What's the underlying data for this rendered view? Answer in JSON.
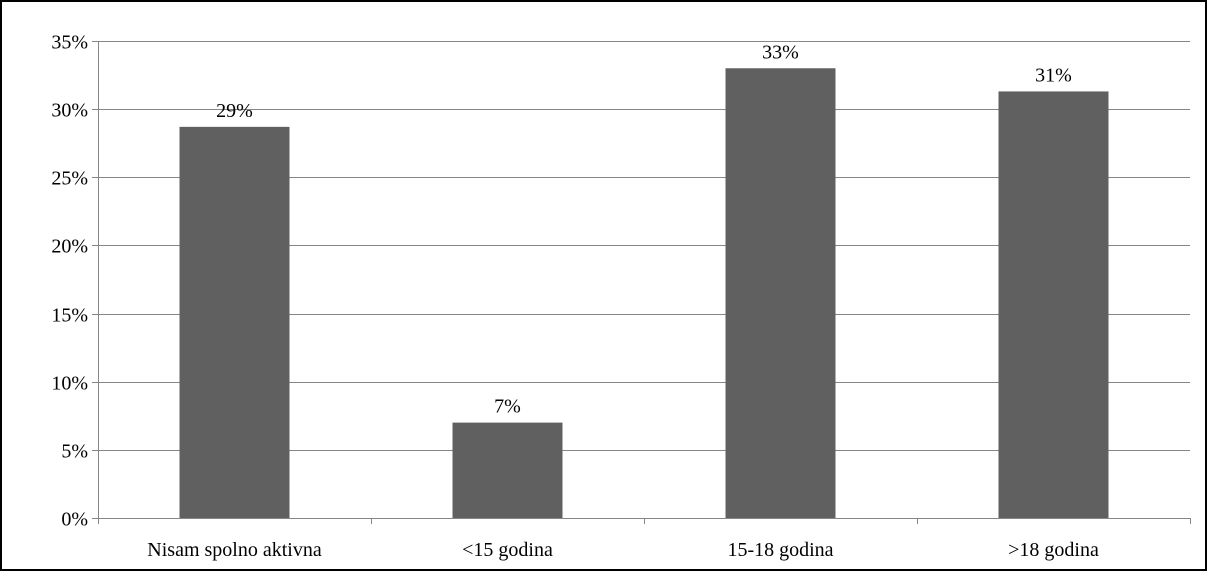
{
  "chart_data": {
    "type": "bar",
    "categories": [
      "Nisam spolno aktivna",
      "<15 godina",
      "15-18 godina",
      ">18 godina"
    ],
    "values": [
      28.7,
      7.0,
      33.0,
      31.3
    ],
    "value_labels": [
      "29%",
      "7%",
      "33%",
      "31%"
    ],
    "title": "",
    "xlabel": "",
    "ylabel": "",
    "ylim": [
      0,
      35
    ],
    "yticks": [
      0,
      5,
      10,
      15,
      20,
      25,
      30,
      35
    ],
    "ytick_labels": [
      "0%",
      "5%",
      "10%",
      "15%",
      "20%",
      "25%",
      "30%",
      "35%"
    ],
    "grid": true,
    "legend": "none",
    "bar_color": "#606060",
    "grid_color": "#868686"
  }
}
